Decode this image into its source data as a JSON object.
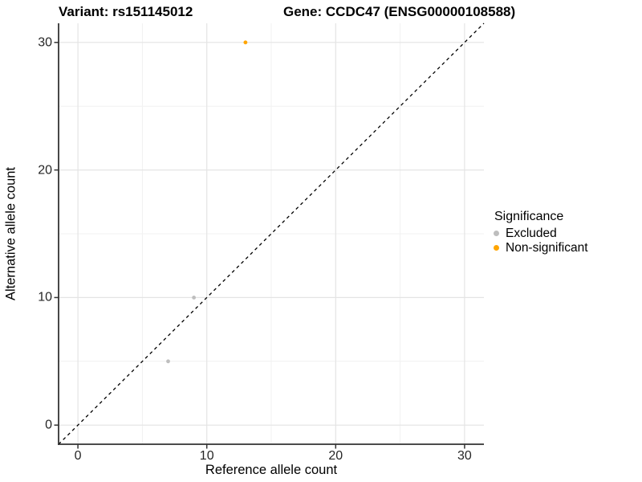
{
  "titles": {
    "variant": "Variant: rs151145012",
    "gene": "Gene: CCDC47 (ENSG00000108588)"
  },
  "axes": {
    "x": {
      "label": "Reference allele count",
      "ticks": [
        "0",
        "10",
        "20",
        "30"
      ]
    },
    "y": {
      "label": "Alternative allele count",
      "ticks": [
        "0",
        "10",
        "20",
        "30"
      ]
    }
  },
  "legend": {
    "title": "Significance",
    "items": [
      {
        "label": "Excluded",
        "color": "#BEBEBE"
      },
      {
        "label": "Non-significant",
        "color": "#FFA500"
      }
    ]
  },
  "colors": {
    "excluded": "#BEBEBE",
    "non_significant": "#FFA500",
    "axis_line": "#333333",
    "grid_major": "#E4E4E4",
    "grid_minor": "#F1F1F1",
    "identity_line": "#000000"
  },
  "chart_data": {
    "type": "scatter",
    "title": "Variant: rs151145012    Gene: CCDC47 (ENSG00000108588)",
    "xlabel": "Reference allele count",
    "ylabel": "Alternative allele count",
    "xlim": [
      -1.5,
      31.5
    ],
    "ylim": [
      -1.5,
      31.5
    ],
    "x_ticks": [
      0,
      10,
      20,
      30
    ],
    "y_ticks": [
      0,
      10,
      20,
      30
    ],
    "x_minor_ticks": [
      5,
      15,
      25
    ],
    "y_minor_ticks": [
      5,
      15,
      25
    ],
    "grid": "on",
    "legend_position": "right",
    "legend_title": "Significance",
    "series": [
      {
        "name": "Excluded",
        "color": "#BEBEBE",
        "points": [
          [
            7,
            5
          ],
          [
            9,
            10
          ]
        ]
      },
      {
        "name": "Non-significant",
        "color": "#FFA500",
        "points": [
          [
            13,
            30
          ]
        ]
      }
    ],
    "reference_line": {
      "type": "identity y=x",
      "style": "dashed",
      "color": "#000000",
      "from": [
        -1.5,
        -1.5
      ],
      "to": [
        31.5,
        31.5
      ]
    }
  }
}
